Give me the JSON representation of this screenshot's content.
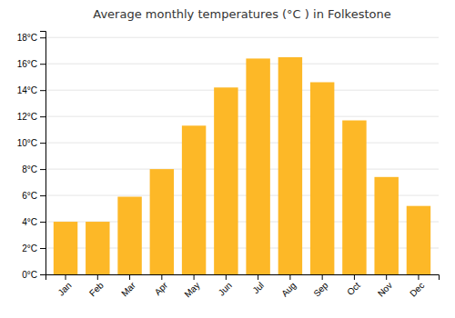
{
  "chart_data": {
    "type": "bar",
    "title": "Average monthly temperatures (°C ) in Folkestone",
    "categories": [
      "Jan",
      "Feb",
      "Mar",
      "Apr",
      "May",
      "Jun",
      "Jul",
      "Aug",
      "Sep",
      "Oct",
      "Nov",
      "Dec"
    ],
    "values": [
      4.0,
      4.0,
      5.9,
      8.0,
      11.3,
      14.2,
      16.4,
      16.5,
      14.6,
      11.7,
      7.4,
      5.2
    ],
    "color": "#FDB827",
    "ylim": [
      0,
      18.5
    ],
    "yticks": [
      {
        "value": 0,
        "label": "0°C"
      },
      {
        "value": 2,
        "label": "2°C"
      },
      {
        "value": 4,
        "label": "4°C"
      },
      {
        "value": 6,
        "label": "6°C"
      },
      {
        "value": 8,
        "label": "8°C"
      },
      {
        "value": 10,
        "label": "10°C"
      },
      {
        "value": 12,
        "label": "12°C"
      },
      {
        "value": 14,
        "label": "14°C"
      },
      {
        "value": 16,
        "label": "16°C"
      },
      {
        "value": 18,
        "label": "18°C"
      }
    ],
    "grid": true
  }
}
